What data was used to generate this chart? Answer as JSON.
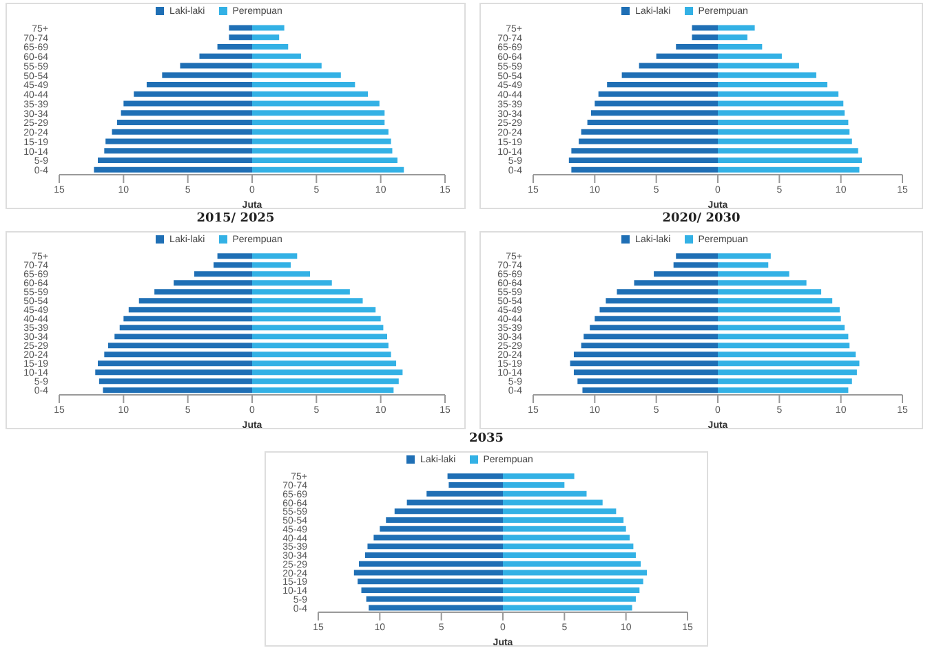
{
  "chart_data": [
    {
      "type": "bar",
      "orientation": "horizontal",
      "stacked": true,
      "xlabel": "Juta",
      "legend": "top",
      "grid": false,
      "categories": [
        "75+",
        "70-74",
        "65-69",
        "60-64",
        "55-59",
        "50-54",
        "45-49",
        "40-44",
        "35-39",
        "30-34",
        "25-29",
        "20-24",
        "15-19",
        "10-14",
        "5-9",
        "0-4"
      ],
      "series": [
        {
          "name": "Laki-laki",
          "color": "#1f6fb5",
          "values": [
            -1.8,
            -1.8,
            -2.7,
            -4.1,
            -5.6,
            -7.0,
            -8.2,
            -9.2,
            -10.0,
            -10.2,
            -10.5,
            -10.9,
            -11.4,
            -11.5,
            -12.0,
            -12.3
          ]
        },
        {
          "name": "Perempuan",
          "color": "#33b1e5",
          "values": [
            2.5,
            2.1,
            2.8,
            3.8,
            5.4,
            6.9,
            8.0,
            9.0,
            9.9,
            10.3,
            10.3,
            10.6,
            10.8,
            10.9,
            11.3,
            11.8
          ]
        }
      ],
      "xlim": [
        -15,
        15
      ],
      "xticks": [
        {
          "value": -15,
          "label": "15"
        },
        {
          "value": -10,
          "label": "10"
        },
        {
          "value": -5,
          "label": "5"
        },
        0,
        5,
        10,
        15
      ]
    },
    {
      "type": "bar",
      "orientation": "horizontal",
      "stacked": true,
      "xlabel": "Juta",
      "legend": "top",
      "grid": false,
      "categories": [
        "75+",
        "70-74",
        "65-69",
        "60-64",
        "55-59",
        "50-54",
        "45-49",
        "40-44",
        "35-39",
        "30-34",
        "25-29",
        "20-24",
        "15-19",
        "10-14",
        "5-9",
        "0-4"
      ],
      "series": [
        {
          "name": "Laki-laki",
          "color": "#1f6fb5",
          "values": [
            -2.1,
            -2.1,
            -3.4,
            -5.0,
            -6.4,
            -7.8,
            -9.0,
            -9.7,
            -10.0,
            -10.3,
            -10.6,
            -11.1,
            -11.3,
            -11.9,
            -12.1,
            -11.9
          ]
        },
        {
          "name": "Perempuan",
          "color": "#33b1e5",
          "values": [
            3.0,
            2.4,
            3.6,
            5.2,
            6.6,
            8.0,
            8.9,
            9.8,
            10.2,
            10.3,
            10.6,
            10.7,
            10.9,
            11.4,
            11.7,
            11.5
          ]
        }
      ],
      "xlim": [
        -15,
        15
      ],
      "xticks": [
        {
          "value": -15,
          "label": "15"
        },
        {
          "value": -10,
          "label": "10"
        },
        {
          "value": -5,
          "label": "5"
        },
        0,
        5,
        10,
        15
      ]
    },
    {
      "type": "bar",
      "orientation": "horizontal",
      "stacked": true,
      "title": "2015/ 2025",
      "xlabel": "Juta",
      "legend": "top",
      "grid": false,
      "categories": [
        "75+",
        "70-74",
        "65-69",
        "60-64",
        "55-59",
        "50-54",
        "45-49",
        "40-44",
        "35-39",
        "30-34",
        "25-29",
        "20-24",
        "15-19",
        "10-14",
        "5-9",
        "0-4"
      ],
      "series": [
        {
          "name": "Laki-laki",
          "color": "#1f6fb5",
          "values": [
            -2.7,
            -3.0,
            -4.5,
            -6.1,
            -7.6,
            -8.8,
            -9.6,
            -10.0,
            -10.3,
            -10.7,
            -11.2,
            -11.5,
            -12.0,
            -12.2,
            -11.9,
            -11.6
          ]
        },
        {
          "name": "Perempuan",
          "color": "#33b1e5",
          "values": [
            3.5,
            3.0,
            4.5,
            6.2,
            7.6,
            8.6,
            9.6,
            10.0,
            10.2,
            10.5,
            10.6,
            10.8,
            11.2,
            11.7,
            11.4,
            11.0
          ]
        }
      ],
      "xlim": [
        -15,
        15
      ],
      "xticks": [
        {
          "value": -15,
          "label": "15"
        },
        {
          "value": -10,
          "label": "10"
        },
        {
          "value": -5,
          "label": "5"
        },
        0,
        5,
        10,
        15
      ]
    },
    {
      "type": "bar",
      "orientation": "horizontal",
      "stacked": true,
      "title": "2020/ 2030",
      "xlabel": "Juta",
      "legend": "top",
      "grid": false,
      "categories": [
        "75+",
        "70-74",
        "65-69",
        "60-64",
        "55-59",
        "50-54",
        "45-49",
        "40-44",
        "35-39",
        "30-34",
        "25-29",
        "20-24",
        "15-19",
        "10-14",
        "5-9",
        "0-4"
      ],
      "series": [
        {
          "name": "Laki-laki",
          "color": "#1f6fb5",
          "values": [
            -3.4,
            -3.6,
            -5.2,
            -6.8,
            -8.2,
            -9.1,
            -9.6,
            -10.0,
            -10.4,
            -10.9,
            -11.1,
            -11.7,
            -12.0,
            -11.7,
            -11.4,
            -11.0
          ]
        },
        {
          "name": "Perempuan",
          "color": "#33b1e5",
          "values": [
            4.3,
            4.1,
            5.8,
            7.2,
            8.4,
            9.3,
            9.9,
            10.0,
            10.3,
            10.6,
            10.7,
            11.2,
            11.5,
            11.3,
            10.9,
            10.6
          ]
        }
      ],
      "xlim": [
        -15,
        15
      ],
      "xticks": [
        {
          "value": -15,
          "label": "15"
        },
        {
          "value": -10,
          "label": "10"
        },
        {
          "value": -5,
          "label": "5"
        },
        0,
        5,
        10,
        15
      ]
    },
    {
      "type": "bar",
      "orientation": "horizontal",
      "stacked": true,
      "title": "2035",
      "xlabel": "Juta",
      "legend": "top",
      "grid": false,
      "categories": [
        "75+",
        "70-74",
        "65-69",
        "60-64",
        "55-59",
        "50-54",
        "45-49",
        "40-44",
        "35-39",
        "30-34",
        "25-29",
        "20-24",
        "15-19",
        "10-14",
        "5-9",
        "0-4"
      ],
      "series": [
        {
          "name": "Laki-laki",
          "color": "#1f6fb5",
          "values": [
            -4.5,
            -4.4,
            -6.2,
            -7.8,
            -8.8,
            -9.5,
            -10.0,
            -10.5,
            -11.0,
            -11.2,
            -11.7,
            -12.1,
            -11.8,
            -11.5,
            -11.1,
            -10.9
          ]
        },
        {
          "name": "Perempuan",
          "color": "#33b1e5",
          "values": [
            5.8,
            5.0,
            6.8,
            8.1,
            9.2,
            9.8,
            10.0,
            10.3,
            10.6,
            10.8,
            11.2,
            11.7,
            11.4,
            11.1,
            10.8,
            10.5
          ]
        }
      ],
      "xlim": [
        -15,
        15
      ],
      "xticks": [
        {
          "value": -15,
          "label": "15"
        },
        {
          "value": -10,
          "label": "10"
        },
        {
          "value": -5,
          "label": "5"
        },
        0,
        5,
        10,
        15
      ]
    }
  ]
}
